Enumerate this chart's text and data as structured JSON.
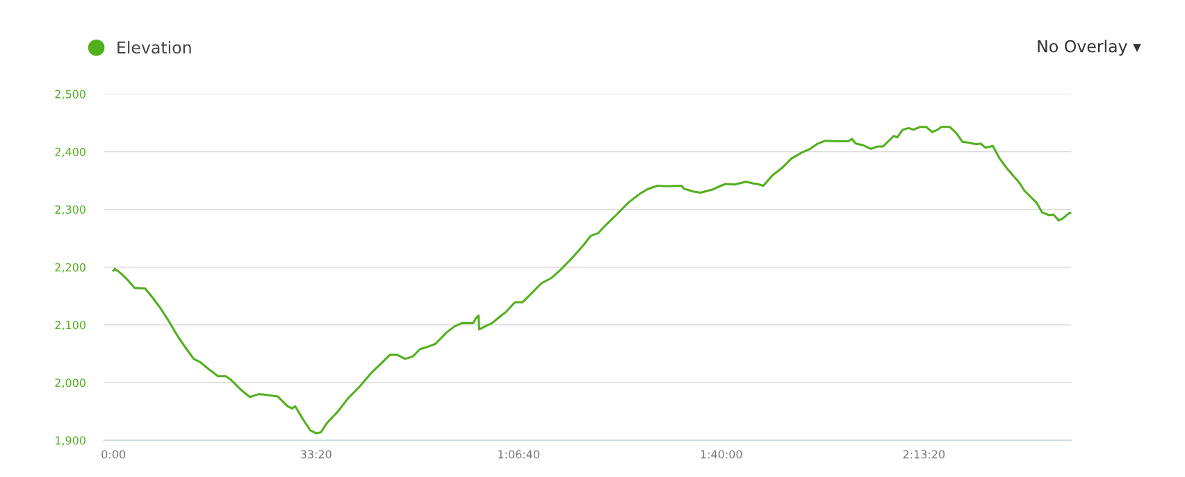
{
  "chart_data": {
    "type": "line",
    "legend": "top left",
    "grid": "y",
    "marker": "none",
    "line_style": "solid",
    "annotations": [
      "No Overlay ▾"
    ],
    "xlim": [
      -97,
      9454
    ],
    "ylim": [
      1900,
      2500
    ],
    "xticks": [
      {
        "value": 0,
        "label": "0:00"
      },
      {
        "value": 2000,
        "label": "33:20"
      },
      {
        "value": 4000,
        "label": "1:06:40"
      },
      {
        "value": 6000,
        "label": "1:40:00"
      },
      {
        "value": 8000,
        "label": "2:13:20"
      }
    ],
    "yticks": [
      {
        "value": 1900,
        "label": "1,900"
      },
      {
        "value": 2000,
        "label": "2,000"
      },
      {
        "value": 2100,
        "label": "2,100"
      },
      {
        "value": 2200,
        "label": "2,200"
      },
      {
        "value": 2300,
        "label": "2,300"
      },
      {
        "value": 2400,
        "label": "2,400"
      },
      {
        "value": 2500,
        "label": "2,500"
      }
    ],
    "series": [
      {
        "name": "Elevation",
        "color": "#52b01e",
        "x": [
          0,
          15,
          75,
          150,
          209,
          314,
          374,
          464,
          538,
          636,
          710,
          793,
          860,
          935,
          1032,
          1107,
          1159,
          1256,
          1346,
          1436,
          1495,
          1570,
          1622,
          1720,
          1764,
          1794,
          1869,
          1944,
          2004,
          2049,
          2108,
          2206,
          2318,
          2430,
          2542,
          2654,
          2729,
          2804,
          2878,
          2953,
          3028,
          3103,
          3178,
          3290,
          3364,
          3439,
          3551,
          3581,
          3604,
          3611,
          3664,
          3738,
          3813,
          3873,
          3963,
          4037,
          4112,
          4224,
          4322,
          4411,
          4523,
          4635,
          4710,
          4785,
          4860,
          4972,
          5084,
          5196,
          5271,
          5368,
          5458,
          5607,
          5630,
          5720,
          5794,
          5907,
          5996,
          6041,
          6131,
          6243,
          6318,
          6355,
          6415,
          6505,
          6594,
          6692,
          6789,
          6878,
          6953,
          7028,
          7140,
          7252,
          7290,
          7327,
          7402,
          7477,
          7544,
          7596,
          7701,
          7738,
          7791,
          7850,
          7895,
          7963,
          8022,
          8082,
          8134,
          8172,
          8254,
          8321,
          8381,
          8433,
          8516,
          8561,
          8606,
          8680,
          8748,
          8815,
          8942,
          8994,
          9114,
          9166,
          9233,
          9278,
          9331,
          9368,
          9435,
          9454
        ],
        "values": [
          2194,
          2197,
          2189,
          2176,
          2164,
          2163,
          2150,
          2129,
          2109,
          2080,
          2061,
          2041,
          2035,
          2024,
          2011,
          2011,
          2005,
          1988,
          1975,
          1980,
          1979,
          1977,
          1976,
          1959,
          1955,
          1959,
          1937,
          1917,
          1912,
          1914,
          1930,
          1948,
          1973,
          1993,
          2016,
          2035,
          2048,
          2048,
          2041,
          2045,
          2058,
          2062,
          2067,
          2087,
          2097,
          2103,
          2103,
          2112,
          2116,
          2092,
          2097,
          2103,
          2114,
          2122,
          2139,
          2139,
          2152,
          2172,
          2181,
          2195,
          2215,
          2237,
          2254,
          2259,
          2273,
          2292,
          2312,
          2327,
          2335,
          2341,
          2340,
          2341,
          2336,
          2331,
          2329,
          2334,
          2341,
          2344,
          2343,
          2348,
          2345,
          2344,
          2341,
          2359,
          2371,
          2388,
          2398,
          2405,
          2414,
          2419,
          2418,
          2418,
          2422,
          2414,
          2411,
          2405,
          2409,
          2409,
          2427,
          2425,
          2438,
          2441,
          2438,
          2443,
          2443,
          2434,
          2438,
          2443,
          2443,
          2432,
          2417,
          2416,
          2413,
          2414,
          2407,
          2410,
          2388,
          2372,
          2346,
          2332,
          2311,
          2295,
          2290,
          2291,
          2281,
          2284,
          2294,
          2294
        ]
      }
    ]
  }
}
